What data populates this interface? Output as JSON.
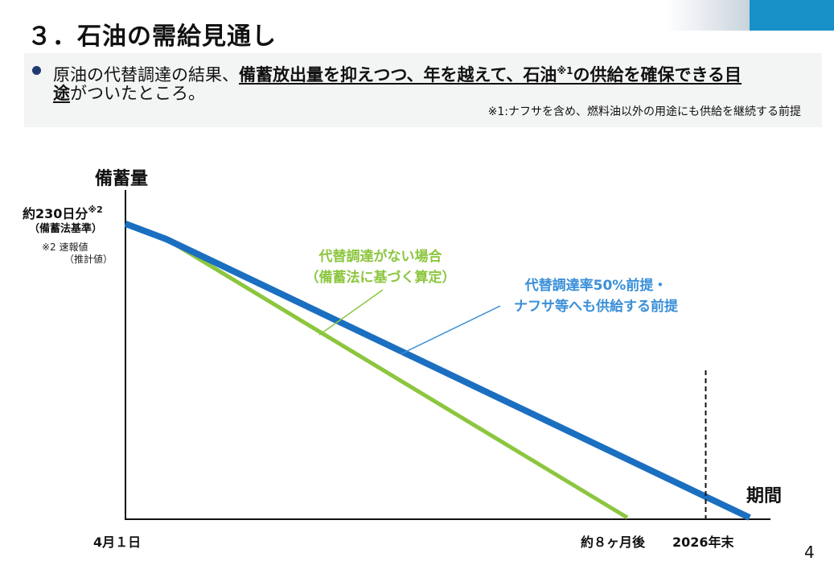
{
  "page": {
    "title": "３．石油の需給見通し",
    "page_number": "4"
  },
  "summary": {
    "text_plain_1": "原油の代替調達の結果、",
    "text_emph_1": "備蓄放出量を抑えつつ、年を越えて、石油",
    "sup": "※1",
    "text_emph_2": "の供給を確保できる目",
    "text_emph_3": "途",
    "text_plain_2": "がついたところ。",
    "footnote": "※1:ナフサを含め、燃料油以外の用途にも供給を継続する前提"
  },
  "colors": {
    "accent_blue": "#1791c8",
    "bullet": "#1f3a6e",
    "green_series": "#8cc63f",
    "blue_series": "#1b6fc0",
    "blue_label": "#3a8fd8"
  },
  "chart_data": {
    "type": "line",
    "ylabel": "備蓄量",
    "xlabel": "期間",
    "y_start_label": "約230日分",
    "y_start_sup": "※2",
    "y_start_sublabel": "（備蓄法基準）",
    "y_notes": [
      "※2  速報値",
      "（推計値）"
    ],
    "x_ticks": {
      "start": "4月１日",
      "green_zero": "約８ヶ月後",
      "year_end": "2026年末"
    },
    "xlim": [
      0,
      10
    ],
    "ylim": [
      0,
      230
    ],
    "grid": false,
    "legend": "callout labels",
    "series": [
      {
        "name": "代替調達がない場合（備蓄法に基づく算定）",
        "label_lines": [
          "代替調達がない場合",
          "（備蓄法に基づく算定）"
        ],
        "color": "#8cc63f",
        "x": [
          0,
          0.65,
          8.0
        ],
        "y": [
          230,
          218,
          0
        ]
      },
      {
        "name": "代替調達率50%前提・ナフサ等へも供給する前提",
        "label_lines": [
          "代替調達率50%前提・",
          "ナフサ等へも供給する前提"
        ],
        "color": "#1b6fc0",
        "x": [
          0,
          0.65,
          9.95
        ],
        "y": [
          230,
          218,
          0
        ]
      }
    ],
    "markers": [
      {
        "label": "2026年末",
        "x": 9.25,
        "style": "dashed-vertical"
      }
    ]
  }
}
